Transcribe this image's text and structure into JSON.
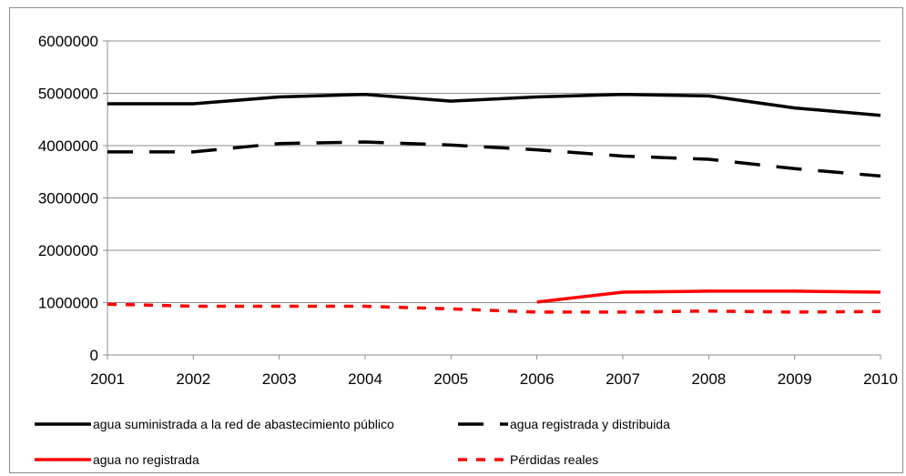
{
  "chart_data": {
    "type": "line",
    "categories": [
      "2001",
      "2002",
      "2003",
      "2004",
      "2005",
      "2006",
      "2007",
      "2008",
      "2009",
      "2010"
    ],
    "ylim": [
      0,
      6000000
    ],
    "yticks": [
      "0",
      "1000000",
      "2000000",
      "3000000",
      "4000000",
      "5000000",
      "6000000"
    ],
    "ytick_values": [
      0,
      1000000,
      2000000,
      3000000,
      4000000,
      5000000,
      6000000
    ],
    "grid": true,
    "legend_position": "bottom",
    "series": [
      {
        "name": "agua suministrada a la red de abastecimiento público",
        "color": "#000000",
        "style": "solid",
        "values": [
          4800000,
          4800000,
          4930000,
          4980000,
          4850000,
          4930000,
          4980000,
          4950000,
          4720000,
          4580000
        ]
      },
      {
        "name": "agua registrada y distribuida",
        "color": "#000000",
        "style": "dashed",
        "values": [
          3880000,
          3880000,
          4040000,
          4070000,
          4010000,
          3920000,
          3800000,
          3740000,
          3560000,
          3420000
        ]
      },
      {
        "name": "agua no registrada",
        "color": "#ff0000",
        "style": "solid",
        "values": [
          null,
          null,
          null,
          null,
          null,
          1010000,
          1200000,
          1220000,
          1220000,
          1200000
        ]
      },
      {
        "name": "Pérdidas reales",
        "color": "#ff0000",
        "style": "dotted",
        "values": [
          970000,
          930000,
          930000,
          930000,
          880000,
          820000,
          820000,
          840000,
          820000,
          830000
        ]
      }
    ]
  }
}
